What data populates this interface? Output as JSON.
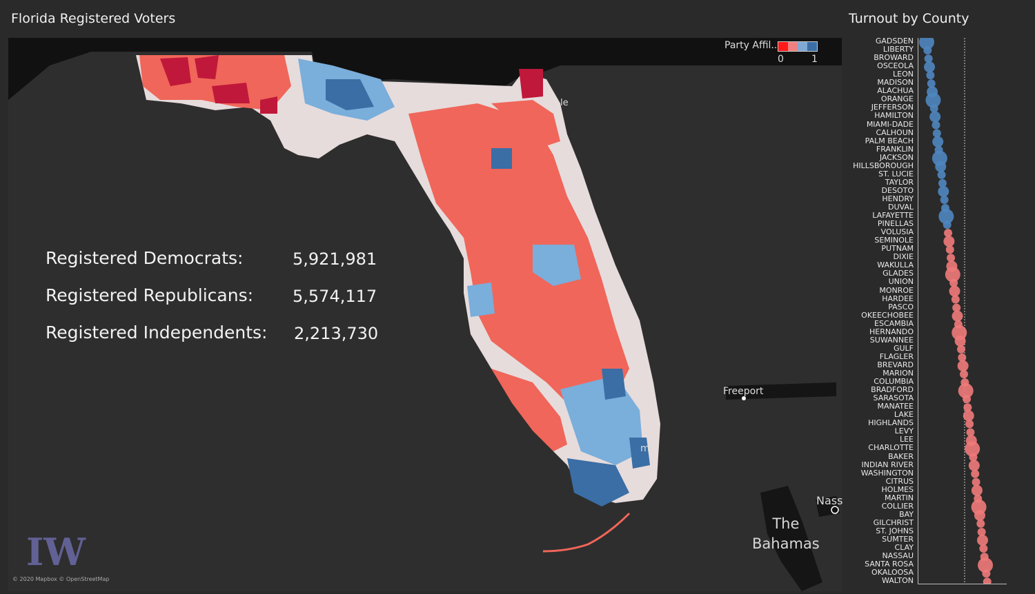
{
  "header": {
    "title": "Florida Registered Voters"
  },
  "stats": [
    {
      "label": "Registered Democrats:",
      "value": "5,921,981"
    },
    {
      "label": "Registered Republicans:",
      "value": "5,574,117"
    },
    {
      "label": "Registered Independents:",
      "value": "2,213,730"
    }
  ],
  "legend": {
    "title": "Party Affil..",
    "min": "0",
    "max": "1",
    "colors": [
      "#ff1a1a",
      "#f08080",
      "#7fa8d4",
      "#3a6ea5"
    ]
  },
  "map": {
    "places": {
      "freeport": "Freeport",
      "nassau": "Nass",
      "bahamas_line1": "The",
      "bahamas_line2": "Bahamas",
      "miami": "mi",
      "jacksonville": "le"
    },
    "attribution": "© 2020 Mapbox © OpenStreetMap",
    "logo_text": "IW"
  },
  "turnout": {
    "title": "Turnout by County",
    "counties": [
      "GADSDEN",
      "LIBERTY",
      "BROWARD",
      "OSCEOLA",
      "LEON",
      "MADISON",
      "ALACHUA",
      "ORANGE",
      "JEFFERSON",
      "HAMILTON",
      "MIAMI-DADE",
      "CALHOUN",
      "PALM BEACH",
      "FRANKLIN",
      "JACKSON",
      "HILLSBOROUGH",
      "ST. LUCIE",
      "TAYLOR",
      "DESOTO",
      "HENDRY",
      "DUVAL",
      "LAFAYETTE",
      "PINELLAS",
      "VOLUSIA",
      "SEMINOLE",
      "PUTNAM",
      "DIXIE",
      "WAKULLA",
      "GLADES",
      "UNION",
      "MONROE",
      "HARDEE",
      "PASCO",
      "OKEECHOBEE",
      "ESCAMBIA",
      "HERNANDO",
      "SUWANNEE",
      "GULF",
      "FLAGLER",
      "BREVARD",
      "MARION",
      "COLUMBIA",
      "BRADFORD",
      "SARASOTA",
      "MANATEE",
      "LAKE",
      "HIGHLANDS",
      "LEVY",
      "LEE",
      "CHARLOTTE",
      "BAKER",
      "INDIAN RIVER",
      "WASHINGTON",
      "CITRUS",
      "HOLMES",
      "MARTIN",
      "COLLIER",
      "BAY",
      "GILCHRIST",
      "ST. JOHNS",
      "SUMTER",
      "CLAY",
      "NASSAU",
      "SANTA ROSA",
      "OKALOOSA",
      "WALTON"
    ],
    "affiliation": [
      "dem",
      "dem",
      "dem",
      "dem",
      "dem",
      "dem",
      "dem",
      "dem",
      "dem",
      "dem",
      "dem",
      "dem",
      "dem",
      "dem",
      "dem",
      "dem",
      "dem",
      "dem",
      "dem",
      "dem",
      "dem",
      "dem",
      "dem",
      "rep",
      "rep",
      "rep",
      "rep",
      "rep",
      "rep",
      "rep",
      "rep",
      "rep",
      "rep",
      "rep",
      "rep",
      "rep",
      "rep",
      "rep",
      "rep",
      "rep",
      "rep",
      "rep",
      "rep",
      "rep",
      "rep",
      "rep",
      "rep",
      "rep",
      "rep",
      "rep",
      "rep",
      "rep",
      "rep",
      "rep",
      "rep",
      "rep",
      "rep",
      "rep",
      "rep",
      "rep",
      "rep",
      "rep",
      "rep",
      "rep",
      "rep",
      "rep"
    ],
    "colors": {
      "dem": "#4f86c0",
      "rep": "#f07a7a"
    }
  }
}
